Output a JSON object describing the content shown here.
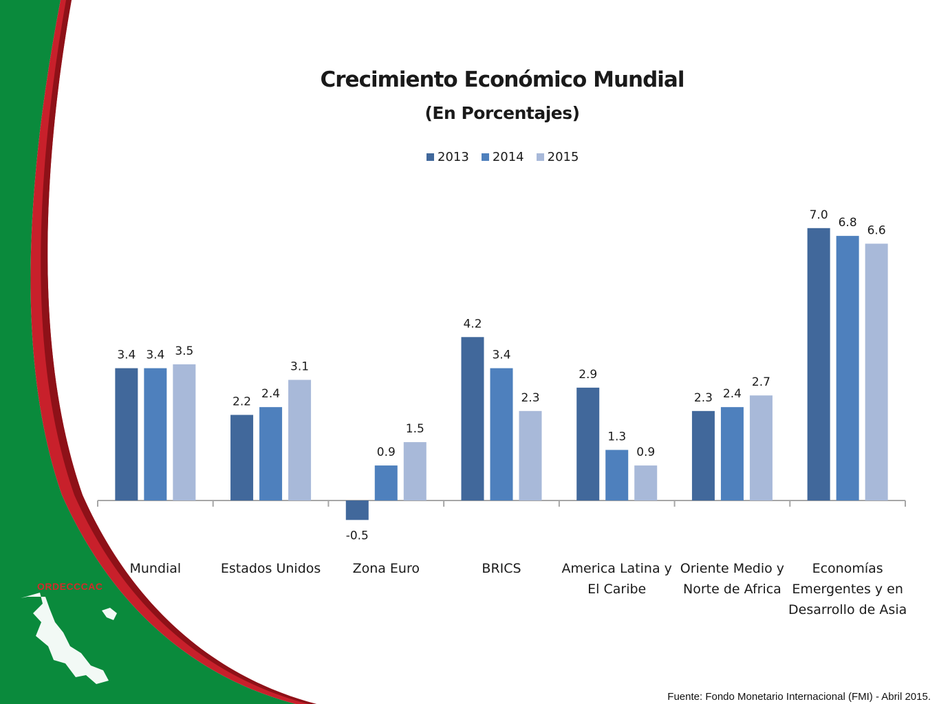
{
  "slide": {
    "source_note": "Fuente: Fondo Monetario Internacional (FMI) -  Abril 2015.",
    "logo_label": "ORDECCCAC",
    "colors": {
      "green": "#0a8a3c",
      "red": "#c8202b",
      "white": "#ffffff"
    }
  },
  "chart_data": {
    "type": "bar",
    "title": "Crecimiento Económico Mundial",
    "subtitle": "(En Porcentajes)",
    "xlabel": "",
    "ylabel": "",
    "ylim": [
      -0.5,
      7.0
    ],
    "grid": false,
    "legend_position": "top-center",
    "categories": [
      [
        "Mundial"
      ],
      [
        "Estados Unidos"
      ],
      [
        "Zona Euro"
      ],
      [
        "BRICS"
      ],
      [
        "America Latina y",
        "El Caribe"
      ],
      [
        "Oriente Medio y",
        "Norte de Africa"
      ],
      [
        "Economías",
        "Emergentes y en",
        "Desarrollo de Asia"
      ]
    ],
    "series": [
      {
        "name": "2013",
        "color": "#41689b",
        "values": [
          3.4,
          2.2,
          -0.5,
          4.2,
          2.9,
          2.3,
          7.0
        ],
        "labels": [
          "3.4",
          "2.2",
          "-0.5",
          "4.2",
          "2.9",
          "2.3",
          "7.0"
        ]
      },
      {
        "name": "2014",
        "color": "#4e80bd",
        "values": [
          3.4,
          2.4,
          0.9,
          3.4,
          1.3,
          2.4,
          6.8
        ],
        "labels": [
          "3.4",
          "2.4",
          "0.9",
          "3.4",
          "1.3",
          "2.4",
          "6.8"
        ]
      },
      {
        "name": "2015",
        "color": "#a8b9d9",
        "values": [
          3.5,
          3.1,
          1.5,
          2.3,
          0.9,
          2.7,
          6.6
        ],
        "labels": [
          "3.5",
          "3.1",
          "1.5",
          "2.3",
          "0.9",
          "2.7",
          "6.6"
        ]
      }
    ]
  }
}
